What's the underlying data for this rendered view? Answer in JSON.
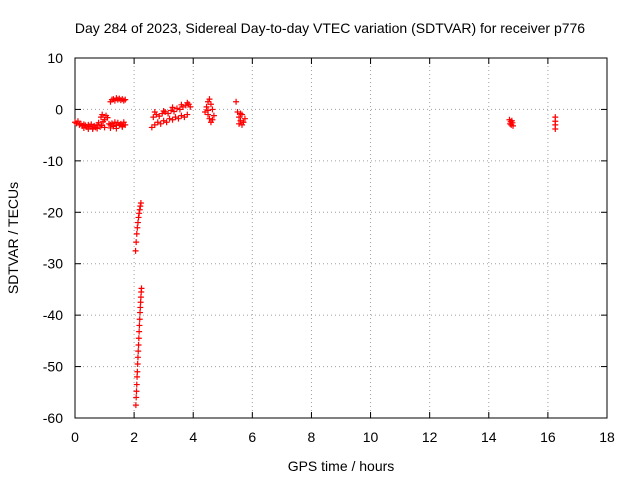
{
  "chart_data": {
    "type": "scatter",
    "title": "Day 284 of 2023, Sidereal Day-to-day VTEC variation (SDTVAR) for receiver p776",
    "xlabel": "GPS time / hours",
    "ylabel": "SDTVAR / TECUs",
    "xlim": [
      0,
      18
    ],
    "ylim": [
      -60,
      10
    ],
    "xticks": [
      "0",
      "2",
      "4",
      "6",
      "8",
      "10",
      "12",
      "14",
      "16",
      "18"
    ],
    "yticks": [
      "10",
      "0",
      "-10",
      "-20",
      "-30",
      "-40",
      "-50",
      "-60"
    ],
    "grid": true,
    "marker": "+",
    "color": "#ff0000",
    "series": [
      {
        "name": "SDTVAR",
        "points": [
          [
            0.0,
            -2.5
          ],
          [
            0.05,
            -2.7
          ],
          [
            0.1,
            -2.3
          ],
          [
            0.15,
            -3.0
          ],
          [
            0.2,
            -2.8
          ],
          [
            0.25,
            -3.2
          ],
          [
            0.3,
            -2.9
          ],
          [
            0.35,
            -3.1
          ],
          [
            0.4,
            -3.4
          ],
          [
            0.45,
            -3.0
          ],
          [
            0.5,
            -3.3
          ],
          [
            0.55,
            -2.9
          ],
          [
            0.6,
            -3.6
          ],
          [
            0.65,
            -3.2
          ],
          [
            0.7,
            -3.5
          ],
          [
            0.75,
            -3.0
          ],
          [
            0.8,
            -2.6
          ],
          [
            0.85,
            -3.4
          ],
          [
            0.9,
            -3.1
          ],
          [
            0.95,
            -2.4
          ],
          [
            1.0,
            -2.0
          ],
          [
            0.88,
            -1.5
          ],
          [
            0.92,
            -1.0
          ],
          [
            1.05,
            -1.2
          ],
          [
            1.1,
            -1.6
          ],
          [
            1.15,
            -2.8
          ],
          [
            1.2,
            -3.0
          ],
          [
            1.25,
            -2.7
          ],
          [
            1.3,
            -3.3
          ],
          [
            1.35,
            -2.5
          ],
          [
            1.4,
            -3.1
          ],
          [
            1.45,
            -2.6
          ],
          [
            1.5,
            -3.0
          ],
          [
            1.55,
            -2.8
          ],
          [
            1.6,
            -3.2
          ],
          [
            1.65,
            -2.5
          ],
          [
            1.7,
            -3.0
          ],
          [
            0.3,
            -3.6
          ],
          [
            0.45,
            -3.8
          ],
          [
            0.6,
            -3.8
          ],
          [
            0.75,
            -3.7
          ],
          [
            1.0,
            -3.5
          ],
          [
            1.2,
            -3.6
          ],
          [
            1.4,
            -3.7
          ],
          [
            1.6,
            -3.4
          ],
          [
            1.2,
            1.5
          ],
          [
            1.25,
            1.9
          ],
          [
            1.3,
            2.0
          ],
          [
            1.35,
            1.7
          ],
          [
            1.4,
            2.2
          ],
          [
            1.45,
            1.9
          ],
          [
            1.5,
            2.1
          ],
          [
            1.55,
            1.8
          ],
          [
            1.6,
            2.0
          ],
          [
            1.65,
            1.7
          ],
          [
            1.7,
            1.9
          ],
          [
            2.05,
            -27.5
          ],
          [
            2.07,
            -25.8
          ],
          [
            2.09,
            -24.2
          ],
          [
            2.11,
            -23.0
          ],
          [
            2.13,
            -22.0
          ],
          [
            2.15,
            -21.0
          ],
          [
            2.17,
            -20.2
          ],
          [
            2.19,
            -19.5
          ],
          [
            2.21,
            -18.8
          ],
          [
            2.23,
            -18.2
          ],
          [
            2.06,
            -57.5
          ],
          [
            2.07,
            -56.0
          ],
          [
            2.08,
            -54.8
          ],
          [
            2.09,
            -53.5
          ],
          [
            2.1,
            -52.0
          ],
          [
            2.11,
            -51.0
          ],
          [
            2.12,
            -49.5
          ],
          [
            2.13,
            -48.2
          ],
          [
            2.14,
            -47.0
          ],
          [
            2.15,
            -45.8
          ],
          [
            2.16,
            -44.5
          ],
          [
            2.17,
            -43.2
          ],
          [
            2.18,
            -42.0
          ],
          [
            2.19,
            -40.8
          ],
          [
            2.2,
            -39.5
          ],
          [
            2.21,
            -38.5
          ],
          [
            2.22,
            -37.5
          ],
          [
            2.23,
            -36.5
          ],
          [
            2.24,
            -35.5
          ],
          [
            2.25,
            -34.8
          ],
          [
            2.6,
            -3.5
          ],
          [
            2.7,
            -3.0
          ],
          [
            2.8,
            -2.5
          ],
          [
            2.9,
            -2.8
          ],
          [
            3.0,
            -2.2
          ],
          [
            3.1,
            -2.5
          ],
          [
            3.2,
            -1.8
          ],
          [
            3.3,
            -2.0
          ],
          [
            3.4,
            -1.5
          ],
          [
            3.5,
            -1.8
          ],
          [
            3.6,
            -1.2
          ],
          [
            3.7,
            -1.5
          ],
          [
            3.8,
            -1.0
          ],
          [
            2.65,
            -1.5
          ],
          [
            2.75,
            -1.0
          ],
          [
            2.85,
            -1.3
          ],
          [
            2.95,
            -0.8
          ],
          [
            3.05,
            -0.5
          ],
          [
            3.15,
            -0.8
          ],
          [
            3.25,
            -0.2
          ],
          [
            3.35,
            -0.4
          ],
          [
            3.45,
            0.2
          ],
          [
            3.55,
            0.0
          ],
          [
            3.65,
            0.5
          ],
          [
            3.75,
            0.8
          ],
          [
            3.85,
            1.0
          ],
          [
            3.9,
            0.5
          ],
          [
            3.8,
            1.3
          ],
          [
            2.7,
            -0.5
          ],
          [
            3.0,
            -0.3
          ],
          [
            3.3,
            0.4
          ],
          [
            3.6,
            0.9
          ],
          [
            4.4,
            -0.5
          ],
          [
            4.45,
            0.5
          ],
          [
            4.5,
            1.5
          ],
          [
            4.55,
            2.0
          ],
          [
            4.6,
            1.0
          ],
          [
            4.65,
            0.0
          ],
          [
            4.5,
            -1.0
          ],
          [
            4.55,
            -1.8
          ],
          [
            4.6,
            -2.5
          ],
          [
            4.65,
            -2.0
          ],
          [
            4.7,
            -1.2
          ],
          [
            4.5,
            -0.2
          ],
          [
            5.45,
            1.5
          ],
          [
            5.5,
            -0.5
          ],
          [
            5.55,
            -1.5
          ],
          [
            5.6,
            -2.2
          ],
          [
            5.65,
            -1.0
          ],
          [
            5.7,
            -2.5
          ],
          [
            5.75,
            -1.8
          ],
          [
            5.55,
            -2.8
          ],
          [
            5.65,
            -3.0
          ],
          [
            5.6,
            -0.8
          ],
          [
            14.7,
            -2.0
          ],
          [
            14.72,
            -2.8
          ],
          [
            14.74,
            -2.4
          ],
          [
            14.76,
            -3.0
          ],
          [
            14.78,
            -2.2
          ],
          [
            14.8,
            -2.6
          ],
          [
            14.82,
            -3.2
          ],
          [
            16.25,
            -1.5
          ],
          [
            16.25,
            -2.3
          ],
          [
            16.25,
            -3.0
          ],
          [
            16.25,
            -3.8
          ]
        ]
      }
    ]
  }
}
